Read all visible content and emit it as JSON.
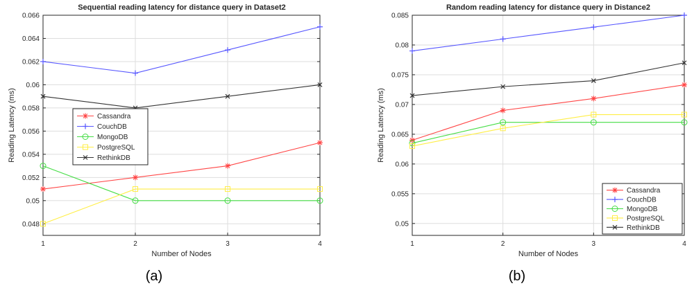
{
  "chart_data": [
    {
      "type": "line",
      "title": "Sequential reading latency for distance query in Dataset2",
      "xlabel": "Number of Nodes",
      "ylabel": "Reading Latency (ms)",
      "caption": "(a)",
      "x": [
        1,
        2,
        3,
        4
      ],
      "xticks": [
        "1",
        "2",
        "3",
        "4"
      ],
      "xlim": [
        1,
        4
      ],
      "ylim": [
        0.047,
        0.066
      ],
      "yticks": [
        "0.048",
        "0.05",
        "0.052",
        "0.054",
        "0.056",
        "0.058",
        "0.06",
        "0.062",
        "0.064",
        "0.066"
      ],
      "ytick_values": [
        0.048,
        0.05,
        0.052,
        0.054,
        0.056,
        0.058,
        0.06,
        0.062,
        0.064,
        0.066
      ],
      "grid": true,
      "legend_placement": "center-left",
      "series": [
        {
          "name": "Cassandra",
          "color": "#ff4444",
          "marker": "star",
          "values": [
            0.051,
            0.052,
            0.053,
            0.055
          ]
        },
        {
          "name": "CouchDB",
          "color": "#5555ff",
          "marker": "plus",
          "values": [
            0.062,
            0.061,
            0.063,
            0.065
          ]
        },
        {
          "name": "MongoDB",
          "color": "#44dd44",
          "marker": "circle",
          "values": [
            0.053,
            0.05,
            0.05,
            0.05
          ]
        },
        {
          "name": "PostgreSQL",
          "color": "#ffee44",
          "marker": "square",
          "values": [
            0.048,
            0.051,
            0.051,
            0.051
          ]
        },
        {
          "name": "RethinkDB",
          "color": "#333333",
          "marker": "x",
          "values": [
            0.059,
            0.058,
            0.059,
            0.06
          ]
        }
      ]
    },
    {
      "type": "line",
      "title": "Random reading latency for distance query in Distance2",
      "xlabel": "Number of Nodes",
      "ylabel": "Reading Latency (ms)",
      "caption": "(b)",
      "x": [
        1,
        2,
        3,
        4
      ],
      "xticks": [
        "1",
        "2",
        "3",
        "4"
      ],
      "xlim": [
        1,
        4
      ],
      "ylim": [
        0.048,
        0.085
      ],
      "yticks": [
        "0.05",
        "0.055",
        "0.06",
        "0.065",
        "0.07",
        "0.075",
        "0.08",
        "0.085"
      ],
      "ytick_values": [
        0.05,
        0.055,
        0.06,
        0.065,
        0.07,
        0.075,
        0.08,
        0.085
      ],
      "grid": true,
      "legend_placement": "bottom-right",
      "series": [
        {
          "name": "Cassandra",
          "color": "#ff4444",
          "marker": "star",
          "values": [
            0.064,
            0.069,
            0.071,
            0.0733
          ]
        },
        {
          "name": "CouchDB",
          "color": "#5555ff",
          "marker": "plus",
          "values": [
            0.079,
            0.081,
            0.083,
            0.085
          ]
        },
        {
          "name": "MongoDB",
          "color": "#44dd44",
          "marker": "circle",
          "values": [
            0.0635,
            0.067,
            0.067,
            0.067
          ]
        },
        {
          "name": "PostgreSQL",
          "color": "#ffee44",
          "marker": "square",
          "values": [
            0.063,
            0.066,
            0.0683,
            0.0683
          ]
        },
        {
          "name": "RethinkDB",
          "color": "#333333",
          "marker": "x",
          "values": [
            0.0715,
            0.073,
            0.074,
            0.077
          ]
        }
      ]
    }
  ]
}
